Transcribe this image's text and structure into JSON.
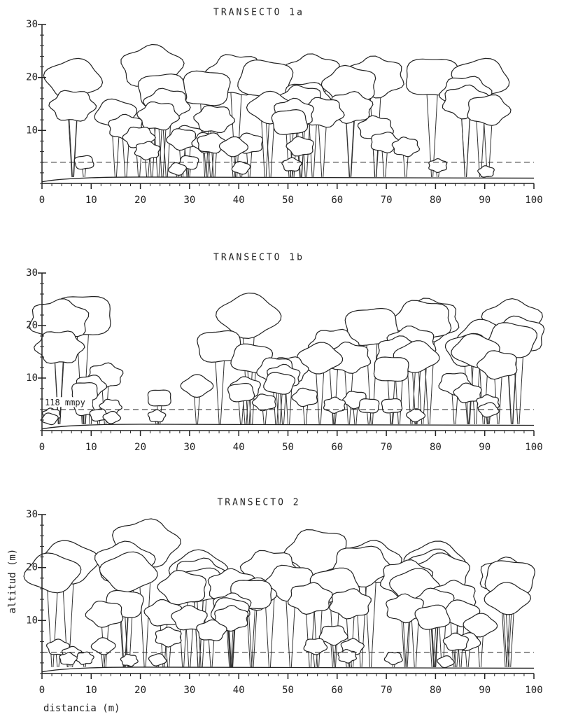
{
  "panels": [
    {
      "title": "TRANSECTO 1a",
      "yticks": [
        10,
        20,
        30
      ],
      "xticks": [
        0,
        10,
        20,
        30,
        40,
        50,
        60,
        70,
        80,
        90,
        100
      ]
    },
    {
      "title": "TRANSECTO 1b",
      "annotation": "118 mmpy",
      "yticks": [
        10,
        20,
        30
      ],
      "xticks": [
        0,
        10,
        20,
        30,
        40,
        50,
        60,
        70,
        80,
        90,
        100
      ]
    },
    {
      "title": "TRANSECTO 2",
      "yticks": [
        10,
        20,
        30
      ],
      "xticks": [
        0,
        10,
        20,
        30,
        40,
        50,
        60,
        70,
        80,
        90,
        100
      ]
    }
  ],
  "y_axis_label": "altitud (m)",
  "x_axis_label": "distancia (m)"
}
